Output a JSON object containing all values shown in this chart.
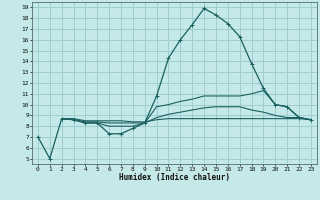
{
  "xlabel": "Humidex (Indice chaleur)",
  "bg_color": "#c5e8e8",
  "grid_color": "#9ecece",
  "line_color": "#1a6060",
  "xlim": [
    -0.5,
    23.5
  ],
  "ylim": [
    4.5,
    19.5
  ],
  "xticks": [
    0,
    1,
    2,
    3,
    4,
    5,
    6,
    7,
    8,
    9,
    10,
    11,
    12,
    13,
    14,
    15,
    16,
    17,
    18,
    19,
    20,
    21,
    22,
    23
  ],
  "yticks": [
    5,
    6,
    7,
    8,
    9,
    10,
    11,
    12,
    13,
    14,
    15,
    16,
    17,
    18,
    19
  ],
  "line1_x": [
    0,
    1,
    2,
    3,
    4,
    5,
    6,
    7,
    8,
    9,
    10,
    11,
    12,
    13,
    14,
    15,
    16,
    17,
    18,
    19,
    20,
    21,
    22,
    23
  ],
  "line1_y": [
    7.0,
    5.0,
    8.7,
    8.6,
    8.3,
    8.3,
    7.3,
    7.3,
    7.8,
    8.3,
    10.8,
    14.3,
    16.0,
    17.4,
    18.9,
    18.3,
    17.5,
    16.3,
    13.8,
    11.5,
    10.0,
    9.8,
    8.8,
    8.6
  ],
  "line2_x": [
    2,
    3,
    4,
    5,
    6,
    7,
    8,
    9,
    10,
    11,
    12,
    13,
    14,
    15,
    16,
    17,
    18,
    19,
    20,
    21,
    22,
    23
  ],
  "line2_y": [
    8.7,
    8.6,
    8.3,
    8.3,
    8.0,
    8.0,
    8.0,
    8.3,
    9.8,
    10.0,
    10.3,
    10.5,
    10.8,
    10.8,
    10.8,
    10.8,
    11.0,
    11.3,
    10.0,
    9.8,
    8.8,
    8.6
  ],
  "line3_x": [
    2,
    3,
    4,
    5,
    6,
    7,
    8,
    9,
    10,
    11,
    12,
    13,
    14,
    15,
    16,
    17,
    18,
    19,
    20,
    21,
    22,
    23
  ],
  "line3_y": [
    8.7,
    8.6,
    8.4,
    8.4,
    8.3,
    8.3,
    8.3,
    8.3,
    8.8,
    9.1,
    9.3,
    9.5,
    9.7,
    9.8,
    9.8,
    9.8,
    9.5,
    9.3,
    9.0,
    8.8,
    8.8,
    8.6
  ],
  "line4_x": [
    2,
    3,
    4,
    5,
    6,
    7,
    8,
    9,
    10,
    11,
    12,
    13,
    14,
    15,
    16,
    17,
    18,
    19,
    20,
    21,
    22,
    23
  ],
  "line4_y": [
    8.7,
    8.7,
    8.5,
    8.5,
    8.5,
    8.5,
    8.4,
    8.4,
    8.6,
    8.7,
    8.7,
    8.7,
    8.7,
    8.7,
    8.7,
    8.7,
    8.7,
    8.7,
    8.7,
    8.7,
    8.7,
    8.6
  ]
}
